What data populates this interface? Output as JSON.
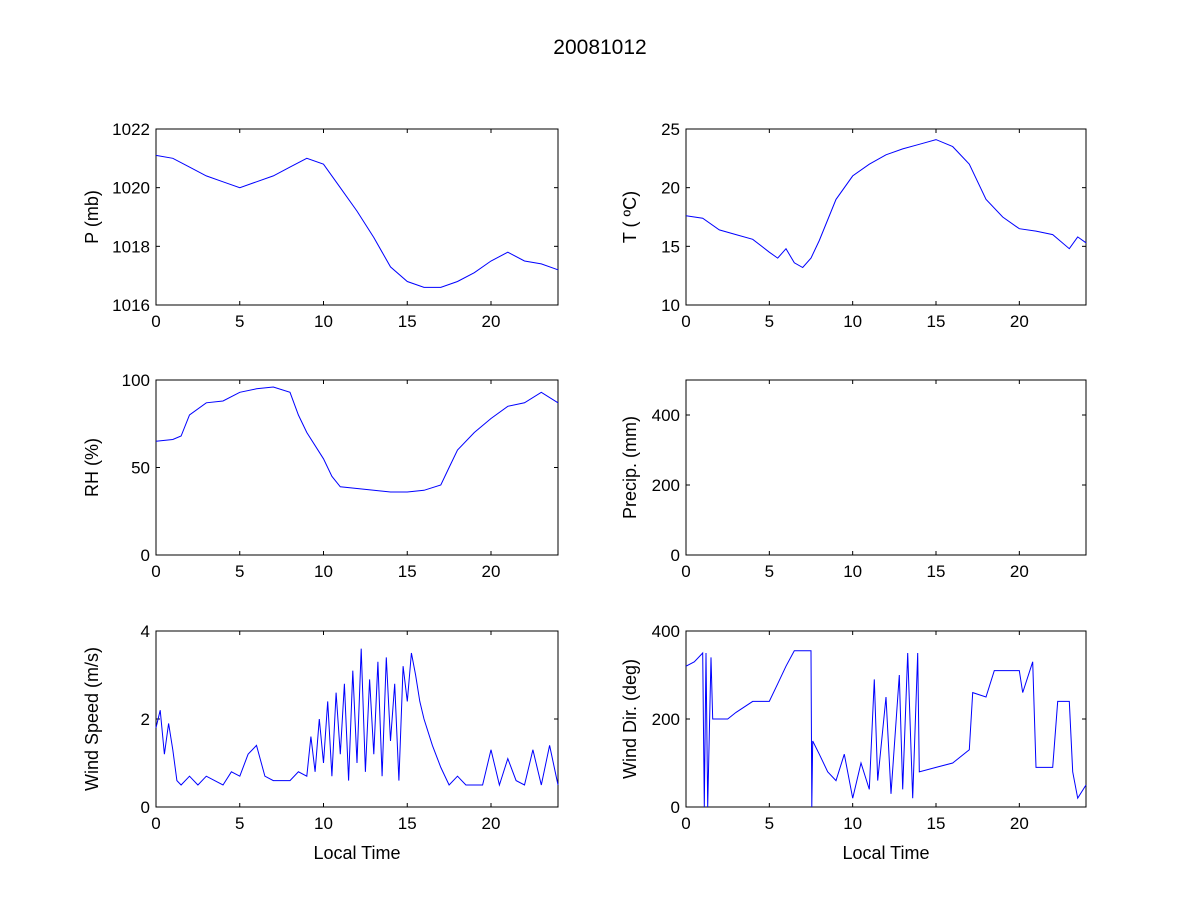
{
  "figure_title": "20081012",
  "line_color": "#0000ff",
  "chart_data": [
    {
      "type": "line",
      "panel": "top-left",
      "ylabel": "P (mb)",
      "xlabel": "",
      "xlim": [
        0,
        24
      ],
      "ylim": [
        1016,
        1022
      ],
      "xticks": [
        0,
        5,
        10,
        15,
        20
      ],
      "yticks": [
        1016,
        1018,
        1020,
        1022
      ],
      "x": [
        0,
        1,
        2,
        3,
        4,
        5,
        6,
        7,
        8,
        9,
        10,
        11,
        12,
        13,
        14,
        15,
        16,
        17,
        18,
        19,
        20,
        21,
        22,
        23,
        24
      ],
      "y": [
        1021.1,
        1021.0,
        1020.7,
        1020.4,
        1020.2,
        1020.0,
        1020.2,
        1020.4,
        1020.7,
        1021.0,
        1020.8,
        1020.0,
        1019.2,
        1018.3,
        1017.3,
        1016.8,
        1016.6,
        1016.6,
        1016.8,
        1017.1,
        1017.5,
        1017.8,
        1017.5,
        1017.4,
        1017.2
      ]
    },
    {
      "type": "line",
      "panel": "top-right",
      "ylabel": "T ( ºC)",
      "xlabel": "",
      "xlim": [
        0,
        24
      ],
      "ylim": [
        10,
        25
      ],
      "xticks": [
        0,
        5,
        10,
        15,
        20
      ],
      "yticks": [
        10,
        15,
        20,
        25
      ],
      "x": [
        0,
        1,
        2,
        3,
        4,
        5,
        5.5,
        6,
        6.5,
        7,
        7.5,
        8,
        9,
        10,
        11,
        12,
        13,
        14,
        15,
        16,
        17,
        18,
        19,
        20,
        21,
        22,
        23,
        23.5,
        24
      ],
      "y": [
        17.6,
        17.4,
        16.4,
        16.0,
        15.6,
        14.5,
        14.0,
        14.8,
        13.6,
        13.2,
        14.0,
        15.5,
        19.0,
        21.0,
        22.0,
        22.8,
        23.3,
        23.7,
        24.1,
        23.5,
        22.0,
        19.0,
        17.5,
        16.5,
        16.3,
        16.0,
        14.8,
        15.8,
        15.3
      ]
    },
    {
      "type": "line",
      "panel": "middle-left",
      "ylabel": "RH (%)",
      "xlabel": "",
      "xlim": [
        0,
        24
      ],
      "ylim": [
        0,
        100
      ],
      "xticks": [
        0,
        5,
        10,
        15,
        20
      ],
      "yticks": [
        0,
        50,
        100
      ],
      "x": [
        0,
        1,
        1.5,
        2,
        3,
        4,
        5,
        6,
        7,
        8,
        8.5,
        9,
        10,
        10.5,
        11,
        12,
        13,
        14,
        15,
        16,
        17,
        17.5,
        18,
        19,
        20,
        21,
        22,
        23,
        24
      ],
      "y": [
        65,
        66,
        68,
        80,
        87,
        88,
        93,
        95,
        96,
        93,
        80,
        70,
        55,
        45,
        39,
        38,
        37,
        36,
        36,
        37,
        40,
        50,
        60,
        70,
        78,
        85,
        87,
        93,
        87
      ]
    },
    {
      "type": "line",
      "panel": "middle-right",
      "ylabel": "Precip. (mm)",
      "xlabel": "",
      "xlim": [
        0,
        24
      ],
      "ylim": [
        0,
        500
      ],
      "xticks": [
        0,
        5,
        10,
        15,
        20
      ],
      "yticks": [
        0,
        200,
        400
      ],
      "x": [],
      "y": []
    },
    {
      "type": "line",
      "panel": "bottom-left",
      "ylabel": "Wind Speed (m/s)",
      "xlabel": "Local Time",
      "xlim": [
        0,
        24
      ],
      "ylim": [
        0,
        4
      ],
      "xticks": [
        0,
        5,
        10,
        15,
        20
      ],
      "yticks": [
        0,
        2,
        4
      ],
      "x": [
        0,
        0.25,
        0.5,
        0.75,
        1,
        1.25,
        1.5,
        2,
        2.5,
        3,
        3.5,
        4,
        4.5,
        5,
        5.5,
        6,
        6.5,
        7,
        7.5,
        8,
        8.5,
        9,
        9.25,
        9.5,
        9.75,
        10,
        10.25,
        10.5,
        10.75,
        11,
        11.25,
        11.5,
        11.75,
        12,
        12.25,
        12.5,
        12.75,
        13,
        13.25,
        13.5,
        13.75,
        14,
        14.25,
        14.5,
        14.75,
        15,
        15.25,
        15.5,
        15.75,
        16,
        16.5,
        17,
        17.5,
        18,
        18.5,
        19,
        19.5,
        20,
        20.5,
        21,
        21.5,
        22,
        22.5,
        23,
        23.5,
        24
      ],
      "y": [
        1.8,
        2.2,
        1.2,
        1.9,
        1.3,
        0.6,
        0.5,
        0.7,
        0.5,
        0.7,
        0.6,
        0.5,
        0.8,
        0.7,
        1.2,
        1.4,
        0.7,
        0.6,
        0.6,
        0.6,
        0.8,
        0.7,
        1.6,
        0.8,
        2.0,
        1.0,
        2.4,
        0.7,
        2.6,
        1.2,
        2.8,
        0.6,
        3.1,
        1.0,
        3.6,
        0.8,
        2.9,
        1.2,
        3.3,
        0.7,
        3.4,
        1.5,
        2.8,
        0.6,
        3.2,
        2.4,
        3.5,
        3.0,
        2.4,
        2.0,
        1.4,
        0.9,
        0.5,
        0.7,
        0.5,
        0.5,
        0.5,
        1.3,
        0.5,
        1.1,
        0.6,
        0.5,
        1.3,
        0.5,
        1.4,
        0.5
      ]
    },
    {
      "type": "line",
      "panel": "bottom-right",
      "ylabel": "Wind Dir. (deg)",
      "xlabel": "Local Time",
      "xlim": [
        0,
        24
      ],
      "ylim": [
        0,
        400
      ],
      "xticks": [
        0,
        5,
        10,
        15,
        20
      ],
      "yticks": [
        0,
        200,
        400
      ],
      "x": [
        0,
        0.5,
        1,
        1.1,
        1.2,
        1.3,
        1.5,
        1.6,
        2.5,
        3,
        4,
        5,
        5.5,
        6,
        6.5,
        7.5,
        7.55,
        7.6,
        8,
        8.5,
        9,
        9.5,
        10,
        10.5,
        11,
        11.3,
        11.5,
        12,
        12.3,
        12.8,
        13,
        13.3,
        13.6,
        13.9,
        14,
        15,
        16,
        17,
        17.2,
        18,
        18.5,
        20,
        20.2,
        20.8,
        21,
        22,
        22.3,
        23,
        23.2,
        23.5,
        24
      ],
      "y": [
        320,
        330,
        350,
        0,
        350,
        0,
        340,
        200,
        200,
        215,
        240,
        240,
        280,
        320,
        355,
        355,
        0,
        150,
        120,
        80,
        60,
        120,
        20,
        100,
        40,
        290,
        60,
        250,
        30,
        300,
        40,
        350,
        20,
        350,
        80,
        90,
        100,
        130,
        260,
        250,
        310,
        310,
        260,
        330,
        90,
        90,
        240,
        240,
        80,
        20,
        50
      ]
    }
  ]
}
